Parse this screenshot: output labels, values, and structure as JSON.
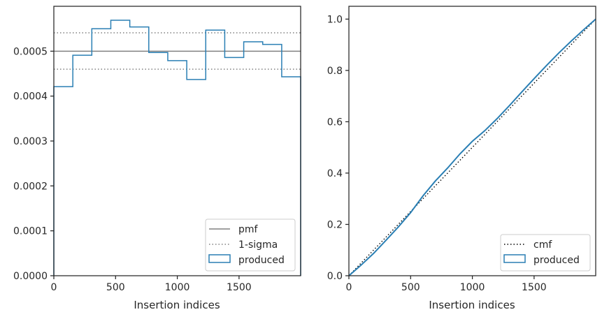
{
  "chart_data": [
    {
      "type": "histogram",
      "title": "",
      "xlabel": "Insertion indices",
      "ylabel": "",
      "xlim": [
        0,
        1999
      ],
      "ylim": [
        0,
        0.0006
      ],
      "xticks": [
        0,
        500,
        1000,
        1500
      ],
      "xtick_labels": [
        "0",
        "500",
        "1000",
        "1500"
      ],
      "yticks": [
        0,
        0.0001,
        0.0002,
        0.0003,
        0.0004,
        0.0005
      ],
      "ytick_labels": [
        "0.0000",
        "0.0001",
        "0.0002",
        "0.0003",
        "0.0004",
        "0.0005"
      ],
      "grid": false,
      "legend_position": "lower-right",
      "bin_edges": [
        0,
        153.8,
        307.6,
        461.4,
        615.2,
        769,
        922.8,
        1076.6,
        1230.4,
        1384.2,
        1538,
        1691.8,
        1845.6,
        1999
      ],
      "series": [
        {
          "name": "pmf",
          "style": "solid",
          "color": "#808080",
          "y": 0.0005
        },
        {
          "name": "1-sigma",
          "style": "dotted",
          "color": "#808080",
          "y": [
            0.00046,
            0.000541
          ]
        },
        {
          "name": "produced",
          "style": "step",
          "color": "#2a7fb4",
          "values": [
            0.000421,
            0.000491,
            0.00055,
            0.000569,
            0.000554,
            0.000497,
            0.000479,
            0.000437,
            0.000547,
            0.000486,
            0.000521,
            0.000515,
            0.000443
          ]
        }
      ]
    },
    {
      "type": "line",
      "title": "",
      "xlabel": "Insertion indices",
      "ylabel": "",
      "xlim": [
        0,
        1999
      ],
      "ylim": [
        0,
        1.05
      ],
      "xticks": [
        0,
        500,
        1000,
        1500
      ],
      "xtick_labels": [
        "0",
        "500",
        "1000",
        "1500"
      ],
      "yticks": [
        0,
        0.2,
        0.4,
        0.6,
        0.8,
        1.0
      ],
      "ytick_labels": [
        "0.0",
        "0.2",
        "0.4",
        "0.6",
        "0.8",
        "1.0"
      ],
      "grid": false,
      "legend_position": "lower-right",
      "series": [
        {
          "name": "cmf",
          "style": "dotted",
          "color": "#000000",
          "x": [
            0,
            1999
          ],
          "y": [
            0,
            1
          ]
        },
        {
          "name": "produced",
          "style": "solid",
          "color": "#2a7fb4",
          "x": [
            0,
            100,
            200,
            300,
            400,
            500,
            600,
            700,
            800,
            900,
            1000,
            1100,
            1200,
            1300,
            1400,
            1500,
            1600,
            1700,
            1800,
            1900,
            1999
          ],
          "y": [
            0,
            0.042,
            0.087,
            0.138,
            0.19,
            0.246,
            0.311,
            0.369,
            0.42,
            0.475,
            0.524,
            0.565,
            0.612,
            0.663,
            0.716,
            0.768,
            0.819,
            0.868,
            0.914,
            0.958,
            1.0
          ]
        }
      ]
    }
  ]
}
